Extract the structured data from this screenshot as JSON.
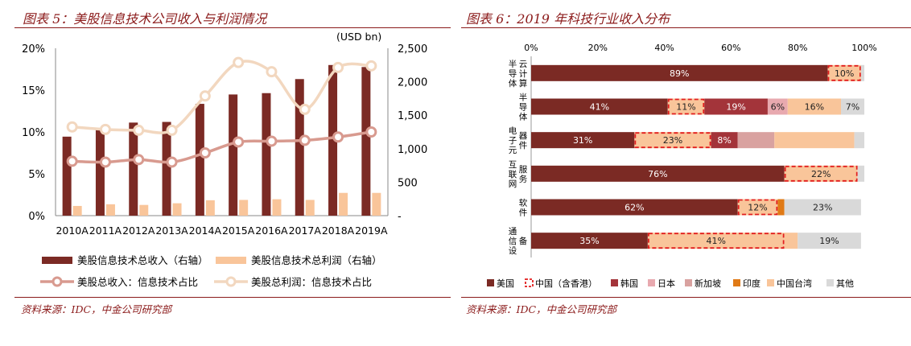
{
  "left": {
    "title": "图表 5：美股信息技术公司收入与利润情况",
    "source": "资料来源：IDC，中金公司研究部",
    "unit_label": "(USD bn)",
    "left_axis_ticks": [
      "0%",
      "5%",
      "10%",
      "15%",
      "20%"
    ],
    "right_axis_ticks": [
      "-",
      "500",
      "1,000",
      "1,500",
      "2,000",
      "2,500"
    ],
    "legend": [
      "美股信息技术总收入（右轴）",
      "美股信息技术总利润（右轴）",
      "美股总收入：信息技术占比",
      "美股总利润：信息技术占比"
    ]
  },
  "right": {
    "title": "图表 6：2019 年科技行业收入分布",
    "source": "资料来源：IDC，中金公司研究部",
    "x_ticks": [
      "0%",
      "20%",
      "40%",
      "60%",
      "80%",
      "100%"
    ],
    "legend": [
      "美国",
      "中国（含香港）",
      "韩国",
      "日本",
      "新加坡",
      "印度",
      "中国台湾",
      "其他"
    ]
  },
  "colors": {
    "dark_red": "#7B2A24",
    "light_orange": "#F9C59A",
    "line_red": "#D89A8F",
    "line_beige": "#F2D7BF",
    "korea": "#A3343A",
    "japan": "#E8A9AF",
    "singapore": "#D9A2A0",
    "india": "#E07A16",
    "taiwan": "#F9C59A",
    "other": "#D9D9D9",
    "dash_red": "#E21E1E"
  },
  "chart_data": [
    {
      "type": "bar",
      "title": "图表 5：美股信息技术公司收入与利润情况",
      "categories": [
        "2010A",
        "2011A",
        "2012A",
        "2013A",
        "2014A",
        "2015A",
        "2016A",
        "2017A",
        "2018A",
        "2019A"
      ],
      "ylim_left": [
        0,
        0.2
      ],
      "ylim_right": [
        0,
        2500
      ],
      "ylabel_right": "(USD bn)",
      "series": [
        {
          "name": "美股信息技术总收入（右轴）",
          "kind": "bar",
          "axis": "right",
          "values": [
            1180,
            1310,
            1390,
            1400,
            1670,
            1810,
            1830,
            2040,
            2250,
            2220
          ]
        },
        {
          "name": "美股信息技术总利润（右轴）",
          "kind": "bar",
          "axis": "right",
          "values": [
            145,
            170,
            160,
            185,
            230,
            235,
            245,
            235,
            340,
            340
          ]
        },
        {
          "name": "美股总收入：信息技术占比",
          "kind": "line",
          "axis": "left",
          "values": [
            0.065,
            0.064,
            0.067,
            0.064,
            0.075,
            0.088,
            0.089,
            0.09,
            0.094,
            0.1
          ]
        },
        {
          "name": "美股总利润：信息技术占比",
          "kind": "line",
          "axis": "left",
          "values": [
            0.106,
            0.103,
            0.102,
            0.102,
            0.143,
            0.183,
            0.172,
            0.127,
            0.177,
            0.179
          ]
        }
      ]
    },
    {
      "type": "bar",
      "orientation": "horizontal-stacked",
      "title": "图表 6：2019 年科技行业收入分布",
      "xlim": [
        0,
        100
      ],
      "categories": [
        "云计算半导体",
        "半导体",
        "电子元器件",
        "互联网服务",
        "软件",
        "通信设备"
      ],
      "category_labels": [
        [
          "半",
          "导",
          "体",
          "云",
          "计",
          "算"
        ],
        [
          "半",
          "导",
          "体"
        ],
        [
          "电",
          "子",
          "元",
          "器",
          "件"
        ],
        [
          "互",
          "联",
          "网",
          "服",
          "务"
        ],
        [
          "软",
          "件"
        ],
        [
          "通",
          "信",
          "设",
          "备"
        ]
      ],
      "series": [
        {
          "name": "美国",
          "values": [
            89,
            41,
            31,
            76,
            62,
            35
          ]
        },
        {
          "name": "中国（含香港）",
          "values": [
            10,
            11,
            23,
            22,
            12,
            41
          ]
        },
        {
          "name": "韩国",
          "values": [
            0,
            19,
            8,
            0,
            0,
            0
          ]
        },
        {
          "name": "日本",
          "values": [
            0,
            6,
            0,
            0,
            0,
            0
          ]
        },
        {
          "name": "新加坡",
          "values": [
            0,
            0,
            11,
            0,
            0,
            0
          ]
        },
        {
          "name": "印度",
          "values": [
            0,
            0,
            0,
            0,
            2,
            0
          ]
        },
        {
          "name": "中国台湾",
          "values": [
            0,
            16,
            24,
            0,
            0,
            4
          ]
        },
        {
          "name": "其他",
          "values": [
            1,
            7,
            3,
            2,
            23,
            19
          ]
        }
      ],
      "data_labels": [
        [
          "89%",
          "10%",
          "",
          "",
          "",
          "",
          "",
          ""
        ],
        [
          "41%",
          "11%",
          "19%",
          "6%",
          "",
          "",
          "16%",
          "7%"
        ],
        [
          "31%",
          "23%",
          "8%",
          "",
          "",
          "",
          "",
          ""
        ],
        [
          "76%",
          "22%",
          "",
          "",
          "",
          "",
          "",
          ""
        ],
        [
          "62%",
          "12%",
          "",
          "",
          "",
          "",
          "",
          "23%"
        ],
        [
          "35%",
          "41%",
          "",
          "",
          "",
          "",
          "",
          "19%"
        ]
      ]
    }
  ]
}
